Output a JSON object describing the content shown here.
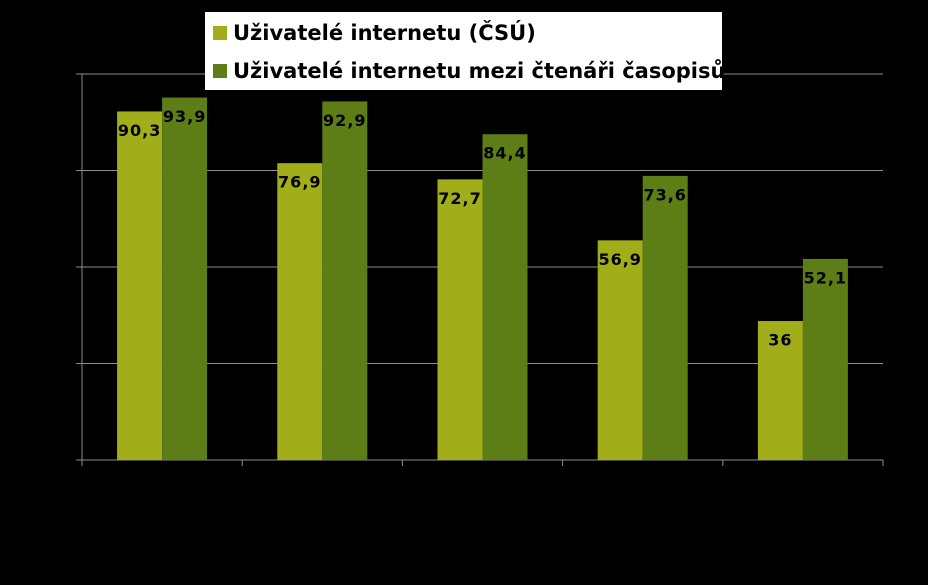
{
  "chart_data": {
    "type": "bar",
    "categories": [
      null,
      null,
      null,
      null,
      null
    ],
    "series": [
      {
        "name": "Uživatelé internetu (ČSÚ)",
        "color": "#a2ad1a",
        "values": [
          90.3,
          76.9,
          72.7,
          56.9,
          36
        ],
        "value_labels": [
          "90,3",
          "76,9",
          "72,7",
          "56,9",
          "36"
        ]
      },
      {
        "name": "Uživatelé internetu mezi čtenáři časopisů",
        "color": "#5d7d17",
        "values": [
          93.9,
          92.9,
          84.4,
          73.6,
          52.1
        ],
        "value_labels": [
          "93,9",
          "92,9",
          "84,4",
          "73,6",
          "52,1"
        ]
      }
    ],
    "ylim": [
      0,
      100
    ],
    "yticks": [
      0,
      25,
      50,
      75,
      100
    ],
    "grid": true
  }
}
